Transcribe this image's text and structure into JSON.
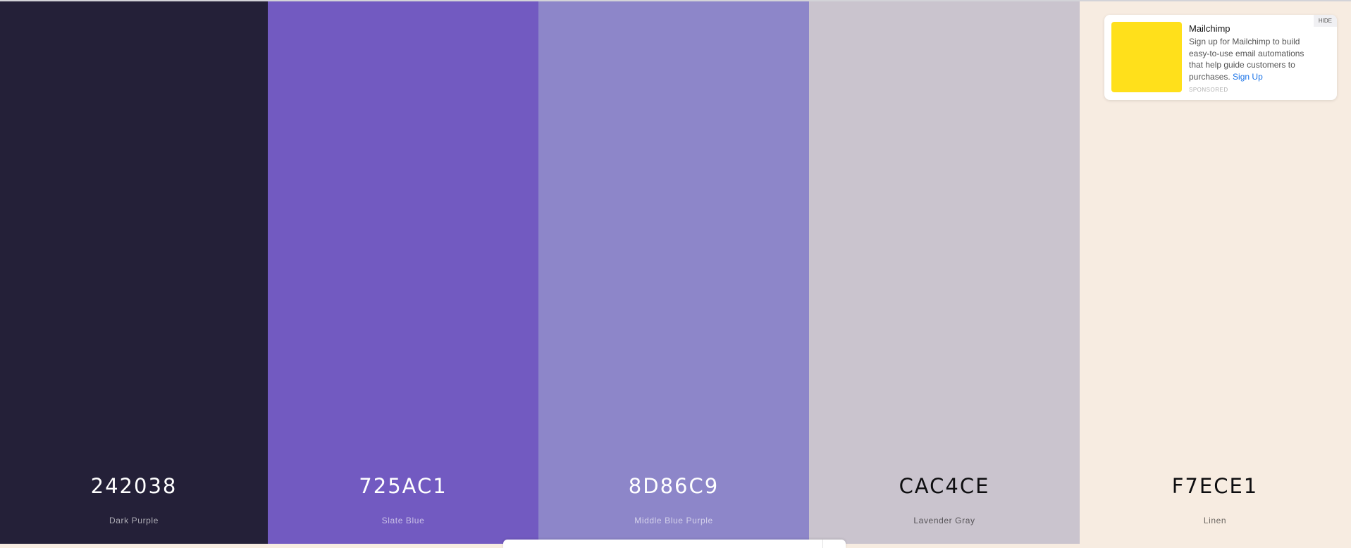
{
  "palette": [
    {
      "hex": "242038",
      "name": "Dark Purple",
      "color": "#242038",
      "tone": "dark"
    },
    {
      "hex": "725AC1",
      "name": "Slate Blue",
      "color": "#725ac1",
      "tone": "dark"
    },
    {
      "hex": "8D86C9",
      "name": "Middle Blue Purple",
      "color": "#8d86c9",
      "tone": "dark"
    },
    {
      "hex": "CAC4CE",
      "name": "Lavender Gray",
      "color": "#cac4ce",
      "tone": "light"
    },
    {
      "hex": "F7ECE1",
      "name": "Linen",
      "color": "#f7ece1",
      "tone": "light"
    }
  ],
  "ad": {
    "title": "Mailchimp",
    "body": "Sign up for Mailchimp to build easy-to-use email automations that help guide customers to purchases.",
    "link_label": "Sign Up",
    "sponsored_label": "SPONSORED",
    "hide_label": "HIDE",
    "image_color": "#ffe01b",
    "link_color": "#1a73e8"
  }
}
